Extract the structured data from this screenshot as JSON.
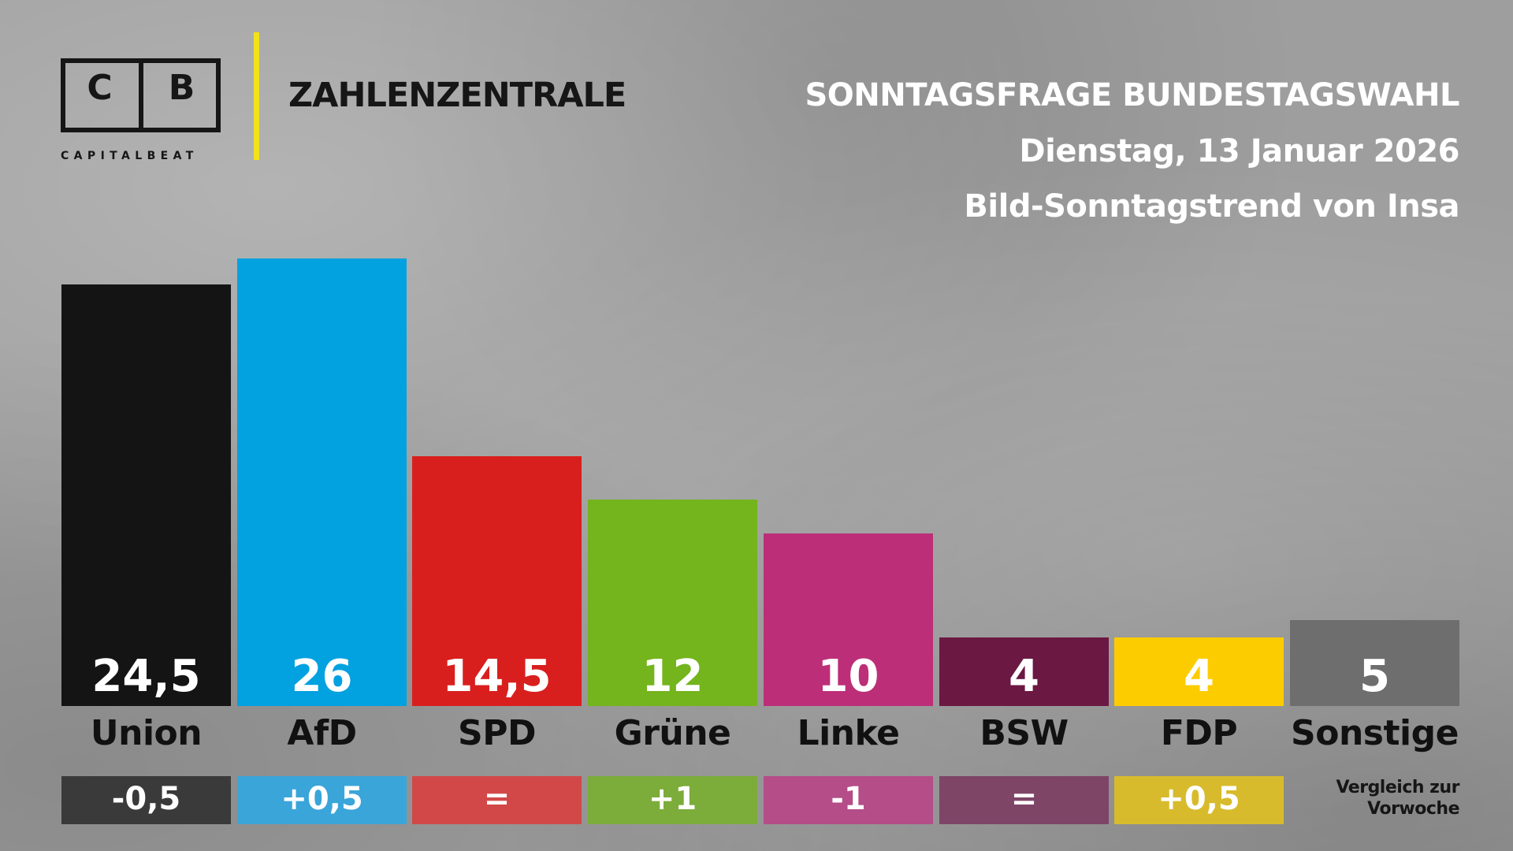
{
  "logo": {
    "letter_left": "C",
    "letter_right": "B",
    "subtitle": "CAPITALBEAT"
  },
  "brand": "ZAHLENZENTRALE",
  "header": {
    "title": "SONNTAGSFRAGE BUNDESTAGSWAHL",
    "date": "Dienstag, 13 Januar 2026",
    "source": "Bild-Sonntagstrend von Insa"
  },
  "comparison_note": "Vergleich zur Vorwoche",
  "chart_data": {
    "type": "bar",
    "categories": [
      "Union",
      "AfD",
      "SPD",
      "Grüne",
      "Linke",
      "BSW",
      "FDP",
      "Sonstige"
    ],
    "values": [
      24.5,
      26,
      14.5,
      12,
      10,
      4,
      4,
      5
    ],
    "value_labels": [
      "24,5",
      "26",
      "14,5",
      "12",
      "10",
      "4",
      "4",
      "5"
    ],
    "changes": [
      "-0,5",
      "+0,5",
      "=",
      "+1",
      "-1",
      "=",
      "+0,5",
      ""
    ],
    "colors": [
      "#141414",
      "#02a1e0",
      "#d91f1e",
      "#74b41c",
      "#bc2f78",
      "#6b1842",
      "#fdcc00",
      "#6e6e6e"
    ],
    "change_colors": [
      "#3a3a3a",
      "#3aa5d9",
      "#d24848",
      "#7cac3a",
      "#b44d88",
      "#7e4567",
      "#d8bb2c",
      ""
    ],
    "grid": false,
    "legend": "none"
  }
}
